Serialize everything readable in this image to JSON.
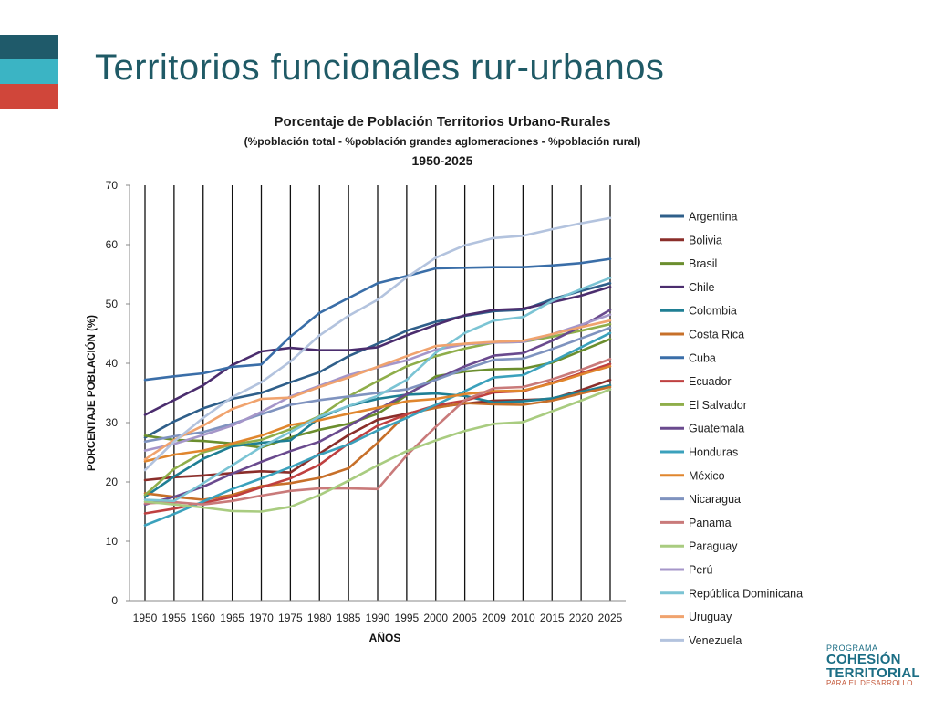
{
  "slide": {
    "title": "Territorios funcionales rur-urbanos",
    "accent_colors": [
      "#1f5a6a",
      "#3bb4c4",
      "#d0463a"
    ]
  },
  "logo": {
    "line1": "PROGRAMA",
    "line2": "COHESIÓN",
    "line3": "TERRITORIAL",
    "line4": "PARA EL DESARROLLO"
  },
  "chart_data": {
    "type": "line",
    "title": "Porcentaje de Población Territorios Urbano-Rurales",
    "subtitle": "(%población total - %población grandes aglomeraciones - %población rural)",
    "period": "1950-2025",
    "xlabel": "AÑOS",
    "ylabel": "PORCENTAJE POBLACIÓN (%)",
    "ylim": [
      0,
      70
    ],
    "yticks": [
      0,
      10,
      20,
      30,
      40,
      50,
      60,
      70
    ],
    "grid": "vertical lines at each year",
    "legend_position": "right",
    "x": [
      "1950",
      "1955",
      "1960",
      "1965",
      "1970",
      "1975",
      "1980",
      "1985",
      "1990",
      "1995",
      "2000",
      "2005",
      "2009",
      "2010",
      "2015",
      "2020",
      "2025"
    ],
    "series": [
      {
        "name": "Argentina",
        "color": "#2f5f8a",
        "values": [
          27.5,
          30.2,
          32.4,
          34.0,
          35.0,
          36.8,
          38.5,
          41.2,
          43.3,
          45.5,
          47.0,
          48.0,
          48.8,
          49.0,
          50.8,
          52.2,
          53.5
        ]
      },
      {
        "name": "Bolivia",
        "color": "#8b2e2a",
        "values": [
          20.3,
          20.8,
          21.1,
          21.5,
          21.8,
          21.6,
          24.8,
          27.9,
          30.5,
          31.5,
          32.6,
          33.2,
          33.7,
          33.8,
          34.0,
          35.5,
          37.2
        ]
      },
      {
        "name": "Brasil",
        "color": "#6b8e2e",
        "values": [
          27.8,
          27.1,
          26.9,
          26.5,
          25.8,
          27.5,
          28.8,
          29.8,
          31.5,
          34.6,
          37.8,
          38.6,
          39.0,
          39.1,
          40.1,
          42.1,
          44.1
        ]
      },
      {
        "name": "Chile",
        "color": "#4b2d6e",
        "values": [
          31.3,
          33.8,
          36.3,
          39.7,
          42.0,
          42.6,
          42.2,
          42.2,
          42.7,
          44.7,
          46.5,
          48.1,
          49.0,
          49.2,
          50.3,
          51.4,
          52.9
        ]
      },
      {
        "name": "Colombia",
        "color": "#1f7f94",
        "values": [
          17.5,
          20.9,
          23.9,
          26.0,
          26.6,
          27.0,
          30.8,
          32.8,
          34.0,
          34.7,
          34.9,
          34.5,
          33.4,
          33.6,
          34.1,
          35.2,
          36.3
        ]
      },
      {
        "name": "Costa Rica",
        "color": "#c7702a",
        "values": [
          18.1,
          17.5,
          17.0,
          17.8,
          19.3,
          19.8,
          20.7,
          22.3,
          26.6,
          31.5,
          32.5,
          33.3,
          33.1,
          33.0,
          33.7,
          34.9,
          36.0
        ]
      },
      {
        "name": "Cuba",
        "color": "#3a6ea8",
        "values": [
          37.2,
          37.8,
          38.3,
          39.4,
          39.8,
          44.5,
          48.5,
          51.0,
          53.5,
          54.7,
          56.0,
          56.1,
          56.2,
          56.2,
          56.5,
          56.9,
          57.6
        ]
      },
      {
        "name": "Ecuador",
        "color": "#bf4040",
        "values": [
          14.7,
          15.5,
          16.5,
          17.5,
          19.1,
          20.6,
          22.9,
          26.5,
          29.5,
          31.4,
          32.9,
          33.7,
          35.1,
          35.3,
          36.7,
          38.3,
          39.9
        ]
      },
      {
        "name": "El Salvador",
        "color": "#8fae4a",
        "values": [
          17.8,
          22.2,
          25.0,
          26.3,
          27.1,
          28.9,
          31.1,
          34.4,
          37.0,
          39.5,
          41.2,
          42.5,
          43.5,
          43.6,
          44.5,
          45.5,
          46.6
        ]
      },
      {
        "name": "Guatemala",
        "color": "#6a4a8e",
        "values": [
          16.2,
          17.5,
          19.2,
          21.4,
          23.4,
          25.2,
          26.8,
          29.4,
          32.2,
          34.8,
          37.3,
          39.5,
          41.3,
          41.7,
          43.8,
          46.2,
          49.0
        ]
      },
      {
        "name": "Honduras",
        "color": "#3ba1bc",
        "values": [
          12.7,
          14.6,
          16.7,
          18.8,
          20.6,
          22.5,
          24.6,
          26.3,
          28.7,
          30.8,
          33.0,
          35.3,
          37.6,
          38.0,
          40.3,
          42.7,
          45.1
        ]
      },
      {
        "name": "México",
        "color": "#e0862e",
        "values": [
          23.5,
          24.6,
          25.3,
          26.5,
          27.8,
          29.6,
          30.4,
          31.5,
          32.5,
          33.6,
          34.0,
          34.8,
          35.3,
          35.4,
          36.6,
          38.1,
          39.5
        ]
      },
      {
        "name": "Nicaragua",
        "color": "#7f93bf",
        "values": [
          26.8,
          27.7,
          28.4,
          29.8,
          31.4,
          33.0,
          33.8,
          34.4,
          35.0,
          35.6,
          37.2,
          39.0,
          40.6,
          40.8,
          42.4,
          44.2,
          46.0
        ]
      },
      {
        "name": "Panama",
        "color": "#c97a7a",
        "values": [
          16.4,
          16.6,
          16.2,
          16.8,
          17.7,
          18.5,
          18.9,
          18.9,
          18.8,
          24.5,
          29.3,
          33.8,
          35.8,
          36.0,
          37.3,
          38.9,
          40.7
        ]
      },
      {
        "name": "Paraguay",
        "color": "#a9cc80",
        "values": [
          16.7,
          16.2,
          15.7,
          15.1,
          15.0,
          15.8,
          17.8,
          20.2,
          22.8,
          25.2,
          27.0,
          28.6,
          29.8,
          30.1,
          31.9,
          33.7,
          35.6
        ]
      },
      {
        "name": "Perú",
        "color": "#a596c9",
        "values": [
          25.3,
          26.4,
          27.9,
          29.5,
          31.8,
          34.4,
          36.2,
          38.0,
          39.3,
          40.5,
          42.3,
          43.2,
          43.5,
          43.6,
          44.9,
          46.5,
          48.2
        ]
      },
      {
        "name": "República Dominicana",
        "color": "#7bc4d4",
        "values": [
          17.0,
          16.8,
          19.8,
          22.8,
          25.9,
          28.4,
          31.0,
          32.8,
          34.5,
          37.2,
          41.8,
          45.1,
          47.2,
          47.8,
          50.5,
          52.5,
          54.4
        ]
      },
      {
        "name": "Uruguay",
        "color": "#f0a36e",
        "values": [
          23.8,
          27.1,
          29.5,
          32.3,
          34.0,
          34.2,
          36.0,
          37.6,
          39.4,
          41.2,
          42.9,
          43.3,
          43.6,
          43.8,
          44.9,
          46.1,
          47.2
        ]
      },
      {
        "name": "Venezuela",
        "color": "#b3c3de",
        "values": [
          22.0,
          26.8,
          30.8,
          34.3,
          36.8,
          40.3,
          44.7,
          48.0,
          50.7,
          54.5,
          57.8,
          59.9,
          61.1,
          61.5,
          62.6,
          63.6,
          64.5
        ]
      }
    ]
  }
}
